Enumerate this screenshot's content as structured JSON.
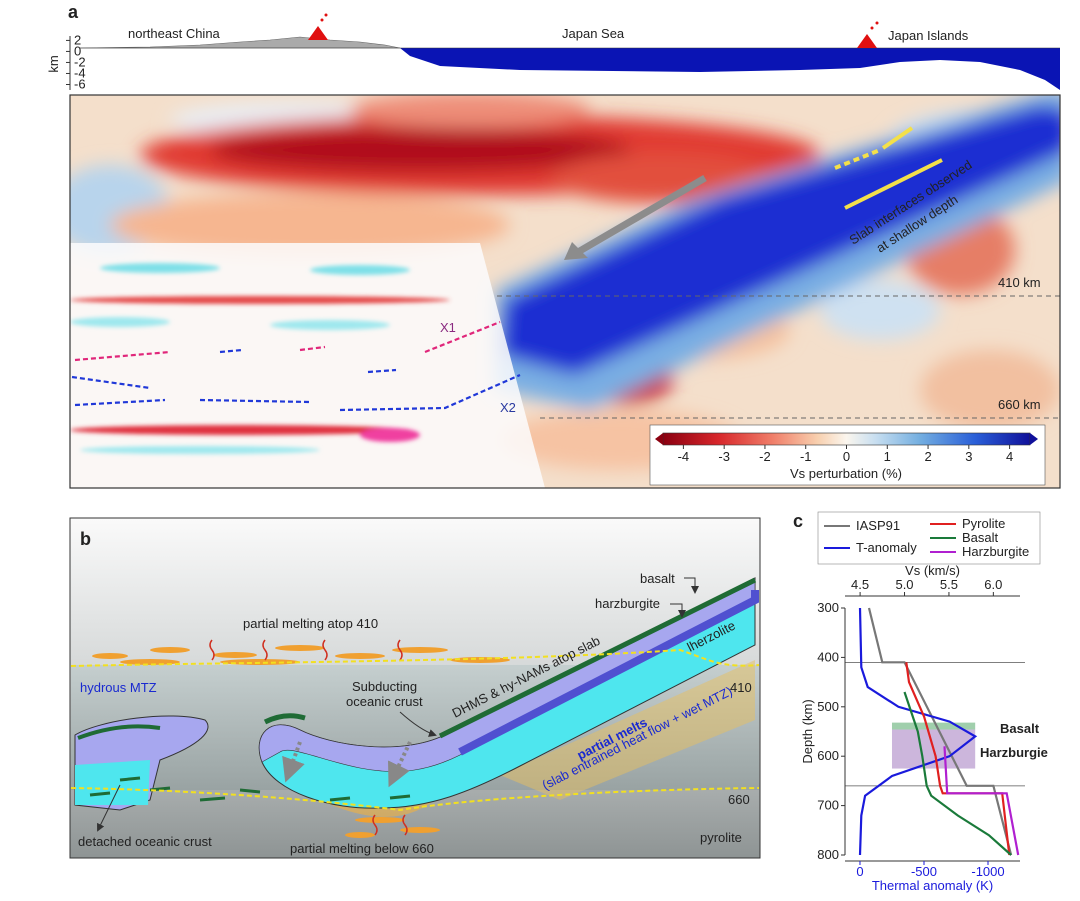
{
  "panel_a": {
    "label": "a",
    "regions": [
      "northeast China",
      "Japan Sea",
      "Japan Islands"
    ],
    "km_axis": {
      "label": "km",
      "ticks": [
        2,
        0,
        -2,
        -4,
        -6
      ],
      "lim": [
        2.8,
        -7
      ]
    },
    "slab_note": [
      "Slab interfaces observed",
      "at shallow depth"
    ],
    "depth_410": "410 km",
    "depth_660": "660 km",
    "x1": "X1",
    "x2": "X2",
    "colorbar": {
      "label": "Vs perturbation (%)",
      "ticks": [
        -4,
        -3,
        -2,
        -1,
        0,
        1,
        2,
        3,
        4
      ],
      "lim": [
        -4.5,
        4.5
      ]
    }
  },
  "panel_b": {
    "label": "b",
    "basalt": "basalt",
    "harzburgite": "harzburgite",
    "melting_410": "partial melting atop 410",
    "hydrous_mtz": "hydrous MTZ",
    "lherzolite": "lherzolite",
    "dhms": "DHMS & hy-NAMs atop slab",
    "subducting": [
      "Subducting",
      "oceanic crust"
    ],
    "d410": "410",
    "partial_melts": "partial melts",
    "melts_note": "(slab entrained heat flow + wet MTZ)",
    "d660": "660",
    "pyrolite": "pyrolite",
    "detached": "detached oceanic crust",
    "melting_660": "partial melting below 660"
  },
  "panel_c": {
    "label": "c",
    "chart": {
      "type": "line",
      "x_label": "Vs (km/s)",
      "xlim": [
        4.33,
        6.3
      ],
      "xticks": [
        4.5,
        {
          "value": 5,
          "label": "5.0"
        },
        5.5,
        {
          "value": 6,
          "label": "6.0"
        }
      ],
      "x2_label": "Thermal anomaly (K)",
      "x2lim": [
        117,
        -1250
      ],
      "x2ticks": [
        0,
        -500,
        -1000
      ],
      "y_label": "Depth (km)",
      "ylim": [
        300,
        800
      ],
      "yticks": [
        300,
        400,
        500,
        600,
        700,
        800
      ],
      "reference_lines": [
        410,
        660
      ],
      "boxes": [
        {
          "label": "Basalt",
          "color": "#8fc79d",
          "depth": [
            532,
            546
          ],
          "thermal": [
            -250,
            -900
          ]
        },
        {
          "label": "Harzburgie",
          "color": "#c3a9d6",
          "depth": [
            546,
            625
          ],
          "thermal": [
            -250,
            -900
          ]
        }
      ],
      "series": [
        {
          "name": "IASP91",
          "color": "#777777",
          "axis": "x",
          "depth": [
            300,
            410,
            410,
            660,
            660,
            800
          ],
          "values": [
            4.6,
            4.75,
            5.0,
            5.7,
            6.0,
            6.2
          ]
        },
        {
          "name": "T-anomaly",
          "color": "#1a1adc",
          "axis": "x2",
          "depth": [
            300,
            420,
            460,
            500,
            530,
            560,
            600,
            640,
            680,
            720,
            800
          ],
          "values": [
            0,
            -10,
            -60,
            -300,
            -700,
            -900,
            -700,
            -250,
            -40,
            -10,
            0
          ]
        },
        {
          "name": "Pyrolite",
          "color": "#e02020",
          "axis": "x",
          "depth": [
            410,
            450,
            520,
            600,
            660,
            675,
            675,
            800
          ],
          "values": [
            5.02,
            5.05,
            5.22,
            5.35,
            5.4,
            5.43,
            6.1,
            6.18
          ]
        },
        {
          "name": "Basalt",
          "color": "#1a7a3a",
          "axis": "x",
          "depth": [
            470,
            550,
            600,
            660,
            680,
            720,
            760,
            800
          ],
          "values": [
            5.0,
            5.15,
            5.2,
            5.25,
            5.3,
            5.6,
            5.95,
            6.2
          ]
        },
        {
          "name": "Harzburgite",
          "color": "#b020d0",
          "axis": "x",
          "depth": [
            580,
            675,
            675,
            800
          ],
          "values": [
            5.45,
            5.48,
            6.15,
            6.28
          ]
        }
      ]
    }
  }
}
